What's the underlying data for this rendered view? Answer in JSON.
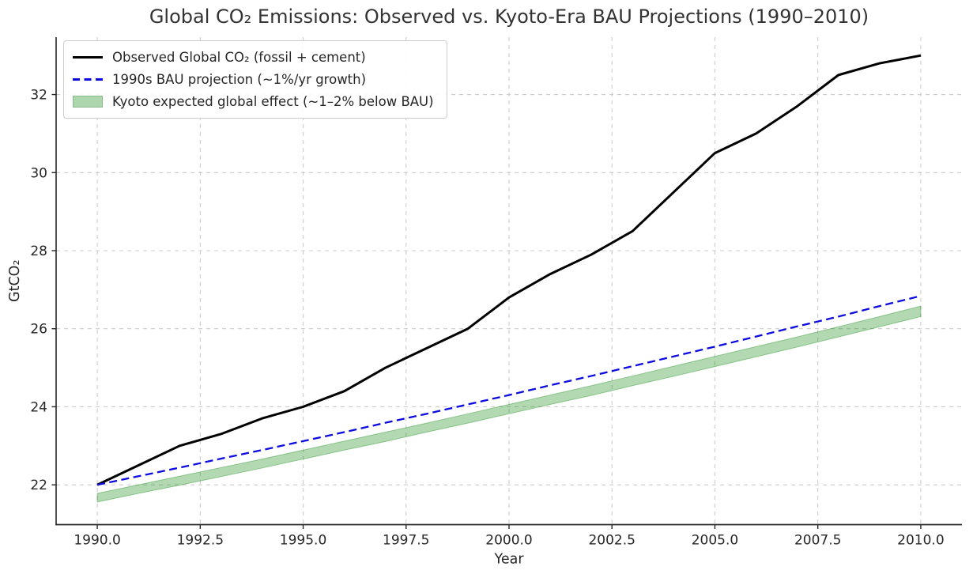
{
  "page": {
    "title": "Global CO₂ Emissions: Observed vs. Kyoto-Era BAU Projections (1990–2010)"
  },
  "chart_data": {
    "type": "line",
    "title": "Global CO₂ Emissions: Observed vs. Kyoto-Era BAU Projections (1990–2010)",
    "xlabel": "Year",
    "ylabel": "GtCO₂",
    "xlim": [
      1989,
      2011
    ],
    "ylim": [
      20.98,
      33.47
    ],
    "grid": true,
    "grid_style": "dashed",
    "legend_position": "upper-left",
    "x_ticks": [
      {
        "value": 1990.0,
        "label": "1990.0"
      },
      {
        "value": 1992.5,
        "label": "1992.5"
      },
      {
        "value": 1995.0,
        "label": "1995.0"
      },
      {
        "value": 1997.5,
        "label": "1997.5"
      },
      {
        "value": 2000.0,
        "label": "2000.0"
      },
      {
        "value": 2002.5,
        "label": "2002.5"
      },
      {
        "value": 2005.0,
        "label": "2005.0"
      },
      {
        "value": 2007.5,
        "label": "2007.5"
      },
      {
        "value": 2010.0,
        "label": "2010.0"
      }
    ],
    "y_ticks": [
      {
        "value": 22,
        "label": "22"
      },
      {
        "value": 24,
        "label": "24"
      },
      {
        "value": 26,
        "label": "26"
      },
      {
        "value": 28,
        "label": "28"
      },
      {
        "value": 30,
        "label": "30"
      },
      {
        "value": 32,
        "label": "32"
      }
    ],
    "x": [
      1990,
      1991,
      1992,
      1993,
      1994,
      1995,
      1996,
      1997,
      1998,
      1999,
      2000,
      2001,
      2002,
      2003,
      2004,
      2005,
      2006,
      2007,
      2008,
      2009,
      2010
    ],
    "series": [
      {
        "name": "Observed Global CO₂ (fossil + cement)",
        "style": "solid",
        "color": "#000000",
        "width": 3,
        "values": [
          22.0,
          22.5,
          23.0,
          23.3,
          23.7,
          24.0,
          24.4,
          25.0,
          25.5,
          26.0,
          26.8,
          27.4,
          27.9,
          28.5,
          29.5,
          30.5,
          31.0,
          31.7,
          32.5,
          32.8,
          33.0
        ]
      },
      {
        "name": "1990s BAU projection (~1%/yr growth)",
        "style": "dashed",
        "color": "#0b0be0",
        "width": 2.3,
        "dash": "10,5.5",
        "values": [
          22.0,
          22.22,
          22.44,
          22.67,
          22.89,
          23.12,
          23.35,
          23.59,
          23.82,
          24.06,
          24.3,
          24.55,
          24.79,
          25.04,
          25.29,
          25.54,
          25.8,
          26.06,
          26.31,
          26.58,
          26.84
        ]
      }
    ],
    "band": {
      "name": "Kyoto expected global effect (~1–2% below BAU)",
      "color": "#008000",
      "fill_opacity": 0.3,
      "upper": [
        21.78,
        22.0,
        22.22,
        22.44,
        22.66,
        22.89,
        23.12,
        23.35,
        23.58,
        23.82,
        24.06,
        24.3,
        24.54,
        24.79,
        25.04,
        25.29,
        25.54,
        25.79,
        26.05,
        26.31,
        26.58
      ],
      "lower": [
        21.56,
        21.78,
        21.99,
        22.21,
        22.43,
        22.66,
        22.89,
        23.11,
        23.35,
        23.58,
        23.82,
        24.06,
        24.29,
        24.54,
        24.78,
        25.03,
        25.28,
        25.53,
        25.79,
        26.05,
        26.31
      ]
    },
    "colors": {
      "grid": "#cccccc",
      "spine": "#262626",
      "tick_text": "#262626",
      "title_text": "#333333"
    }
  }
}
